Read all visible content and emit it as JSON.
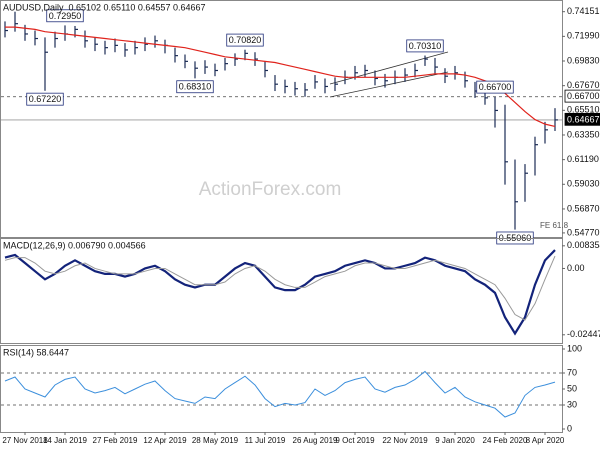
{
  "chart_data": [
    {
      "type": "ohlc",
      "title": "AUDUSD,Daily",
      "subtitle": "0.65102 0.65110 0.64557 0.64667",
      "color": "#1c2c55",
      "high": [
        0.733,
        0.7415,
        0.73,
        0.725,
        0.719,
        0.724,
        0.7295,
        0.729,
        0.725,
        0.719,
        0.716,
        0.718,
        0.714,
        0.716,
        0.719,
        0.7206,
        0.717,
        0.71,
        0.704,
        0.698,
        0.699,
        0.696,
        0.701,
        0.705,
        0.7082,
        0.706,
        0.698,
        0.686,
        0.682,
        0.68,
        0.679,
        0.686,
        0.683,
        0.684,
        0.69,
        0.694,
        0.695,
        0.69,
        0.687,
        0.69,
        0.692,
        0.696,
        0.7031,
        0.701,
        0.692,
        0.694,
        0.689,
        0.68,
        0.673,
        0.667,
        0.66,
        0.612,
        0.608,
        0.632,
        0.645,
        0.657
      ],
      "low": [
        0.719,
        0.724,
        0.716,
        0.712,
        0.6722,
        0.71,
        0.716,
        0.719,
        0.71,
        0.707,
        0.704,
        0.706,
        0.702,
        0.704,
        0.707,
        0.71,
        0.705,
        0.697,
        0.692,
        0.6831,
        0.687,
        0.685,
        0.69,
        0.694,
        0.699,
        0.694,
        0.684,
        0.672,
        0.67,
        0.668,
        0.667,
        0.674,
        0.67,
        0.672,
        0.678,
        0.682,
        0.684,
        0.677,
        0.675,
        0.678,
        0.68,
        0.684,
        0.694,
        0.687,
        0.679,
        0.682,
        0.675,
        0.666,
        0.66,
        0.64,
        0.59,
        0.5506,
        0.575,
        0.598,
        0.626,
        0.637
      ],
      "close": [
        0.725,
        0.731,
        0.722,
        0.718,
        0.706,
        0.718,
        0.722,
        0.726,
        0.716,
        0.713,
        0.71,
        0.712,
        0.708,
        0.71,
        0.713,
        0.716,
        0.712,
        0.703,
        0.698,
        0.692,
        0.693,
        0.69,
        0.696,
        0.7,
        0.705,
        0.7,
        0.69,
        0.678,
        0.676,
        0.674,
        0.673,
        0.68,
        0.676,
        0.678,
        0.684,
        0.688,
        0.69,
        0.683,
        0.681,
        0.684,
        0.686,
        0.69,
        0.7,
        0.693,
        0.685,
        0.688,
        0.681,
        0.672,
        0.666,
        0.655,
        0.61,
        0.575,
        0.6,
        0.625,
        0.638,
        0.6467
      ],
      "ma": {
        "color": "#e0231c",
        "values": [
          0.728,
          0.728,
          0.727,
          0.726,
          0.724,
          0.723,
          0.722,
          0.721,
          0.72,
          0.719,
          0.718,
          0.717,
          0.716,
          0.715,
          0.714,
          0.713,
          0.712,
          0.711,
          0.71,
          0.708,
          0.706,
          0.704,
          0.702,
          0.701,
          0.7,
          0.699,
          0.698,
          0.697,
          0.695,
          0.693,
          0.691,
          0.689,
          0.687,
          0.685,
          0.684,
          0.684,
          0.684,
          0.684,
          0.684,
          0.684,
          0.684,
          0.685,
          0.686,
          0.687,
          0.687,
          0.687,
          0.686,
          0.684,
          0.681,
          0.677,
          0.67,
          0.662,
          0.654,
          0.647,
          0.643,
          0.641
        ]
      },
      "ylim": [
        0.545,
        0.75
      ],
      "yticks": [
        0.74151,
        {
          "value": 0.7199,
          "label": "0.71990"
        },
        {
          "value": 0.6983,
          "label": "0.69830"
        },
        {
          "value": 0.6767,
          "label": "0.67670"
        },
        {
          "value": 0.6551,
          "label": "0.65510"
        },
        {
          "value": 0.6335,
          "label": "0.63350"
        },
        {
          "value": 0.6119,
          "label": "0.61190"
        },
        {
          "value": 0.5903,
          "label": "0.59030"
        },
        {
          "value": 0.5687,
          "label": "0.56870"
        },
        {
          "value": 0.5477,
          "label": "0.54770"
        }
      ],
      "levels": [
        {
          "value": 0.667,
          "label": "0.66700",
          "style": "dashed"
        },
        {
          "value": 0.64667,
          "style": "solid"
        }
      ],
      "annotations": [
        {
          "value": 0.7295,
          "label": "0.72950"
        },
        {
          "value": 0.6722,
          "label": "0.67220"
        },
        {
          "value": 0.6831,
          "label": "0.68310"
        },
        {
          "value": 0.7082,
          "label": "0.70820"
        },
        {
          "value": 0.667,
          "label": "0.66700"
        },
        {
          "value": 0.7031,
          "label": "0.70310"
        },
        {
          "value": 0.5506,
          "label": "0.55060"
        }
      ],
      "watermark": "ActionForex.com",
      "note": "FE 61.8"
    },
    {
      "type": "line",
      "title": "MACD(12,26,9) 0.006790 0.004566",
      "series": [
        {
          "color": "#13237a",
          "values": [
            0.004,
            0.005,
            0.002,
            -0.001,
            -0.004,
            -0.002,
            0.001,
            0.003,
            0.001,
            -0.001,
            -0.002,
            -0.002,
            -0.003,
            -0.002,
            0.0,
            0.001,
            -0.001,
            -0.004,
            -0.006,
            -0.007,
            -0.006,
            -0.006,
            -0.003,
            0.0,
            0.002,
            0.001,
            -0.003,
            -0.007,
            -0.008,
            -0.008,
            -0.006,
            -0.003,
            -0.002,
            -0.001,
            0.001,
            0.002,
            0.003,
            0.002,
            0.0,
            0.0,
            0.001,
            0.002,
            0.004,
            0.003,
            0.001,
            0.0,
            -0.001,
            -0.004,
            -0.006,
            -0.009,
            -0.018,
            -0.024,
            -0.018,
            -0.006,
            0.003,
            0.00679
          ]
        },
        {
          "color": "#9a9a9a",
          "values": [
            0.003,
            0.004,
            0.004,
            0.002,
            -0.001,
            -0.002,
            -0.001,
            0.001,
            0.002,
            0.0,
            -0.001,
            -0.002,
            -0.002,
            -0.002,
            -0.001,
            0.0,
            0.0,
            -0.002,
            -0.004,
            -0.006,
            -0.006,
            -0.006,
            -0.005,
            -0.002,
            0.0,
            0.001,
            -0.001,
            -0.004,
            -0.006,
            -0.007,
            -0.007,
            -0.005,
            -0.003,
            -0.002,
            -0.001,
            0.001,
            0.002,
            0.002,
            0.001,
            0.0,
            0.0,
            0.001,
            0.002,
            0.003,
            0.002,
            0.001,
            0.0,
            -0.002,
            -0.004,
            -0.006,
            -0.011,
            -0.017,
            -0.019,
            -0.013,
            -0.004,
            0.004566
          ]
        }
      ],
      "ylim": [
        -0.0275,
        0.0105
      ],
      "yticks": [
        0.008354,
        {
          "value": 0,
          "label": "0.00"
        },
        -0.02447
      ]
    },
    {
      "type": "line",
      "title": "RSI(14) 58.6447",
      "series": [
        {
          "color": "#3c8fdc",
          "values": [
            60,
            65,
            50,
            45,
            40,
            55,
            62,
            65,
            50,
            45,
            48,
            52,
            44,
            50,
            56,
            60,
            48,
            38,
            35,
            32,
            40,
            38,
            50,
            58,
            66,
            55,
            38,
            28,
            32,
            30,
            33,
            50,
            42,
            48,
            58,
            62,
            65,
            50,
            46,
            52,
            55,
            62,
            72,
            58,
            45,
            52,
            40,
            34,
            30,
            26,
            15,
            20,
            42,
            52,
            55,
            58.6447
          ]
        }
      ],
      "ylim": [
        0,
        100
      ],
      "yticks": [
        100,
        70,
        50,
        30,
        0
      ],
      "levels": [
        {
          "value": 70,
          "style": "dashed"
        },
        {
          "value": 30,
          "style": "dashed"
        }
      ],
      "categories": [
        null,
        null,
        "27 Nov 2018",
        null,
        null,
        null,
        "14 Jan 2019",
        null,
        null,
        null,
        null,
        "27 Feb 2019",
        null,
        null,
        null,
        null,
        "12 Apr 2019",
        null,
        null,
        null,
        null,
        "28 May 2019",
        null,
        null,
        null,
        null,
        "11 Jul 2019",
        null,
        null,
        null,
        null,
        "26 Aug 2019",
        null,
        null,
        null,
        "9 Oct 2019",
        null,
        null,
        null,
        null,
        "22 Nov 2019",
        null,
        null,
        null,
        null,
        "9 Jan 2020",
        null,
        null,
        null,
        null,
        "24 Feb 2020",
        null,
        null,
        null,
        "8 Apr 2020",
        null
      ]
    }
  ]
}
